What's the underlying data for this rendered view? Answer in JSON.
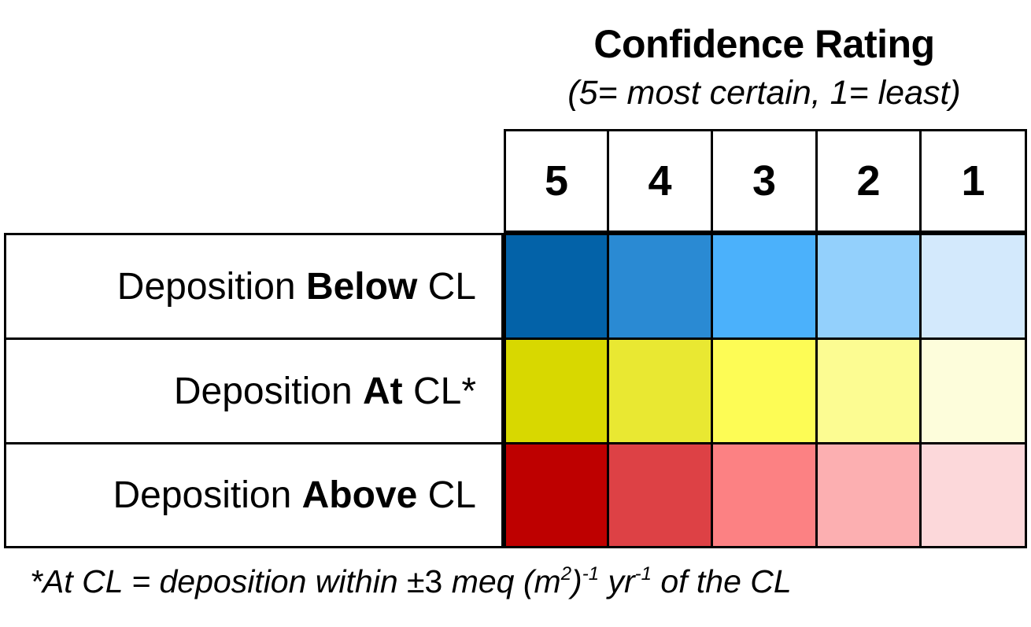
{
  "header": {
    "title": "Confidence Rating",
    "subtitle": "(5= most certain, 1= least)"
  },
  "columns": [
    "5",
    "4",
    "3",
    "2",
    "1"
  ],
  "rows": [
    {
      "label_pre": "Deposition ",
      "label_bold": "Below",
      "label_post": " CL",
      "colors": [
        "#0362A8",
        "#2A8AD3",
        "#4BB1FB",
        "#93D0FC",
        "#D3E9FC"
      ]
    },
    {
      "label_pre": "Deposition ",
      "label_bold": "At",
      "label_post": " CL*",
      "colors": [
        "#D8D800",
        "#E9E832",
        "#FDFC55",
        "#FCFC92",
        "#FDFDDB"
      ]
    },
    {
      "label_pre": "Deposition ",
      "label_bold": "Above",
      "label_post": " CL",
      "colors": [
        "#BE0000",
        "#DD4145",
        "#FC8183",
        "#FCAFB1",
        "#FCD8DA"
      ]
    }
  ],
  "footnote": {
    "prefix": "*At CL = deposition within ",
    "pm": "±3",
    "meq": " meq (m",
    "sup1": "2",
    "mid": ")",
    "sup2": "-1",
    "yr": " yr",
    "sup3": "-1",
    "suffix": " of the CL"
  }
}
